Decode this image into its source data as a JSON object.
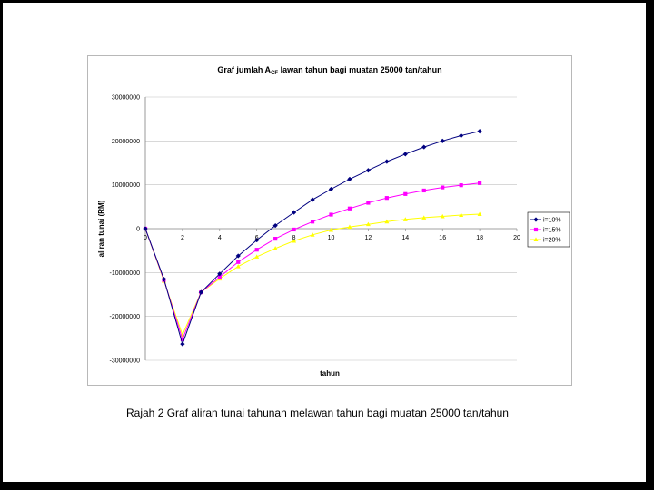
{
  "caption": "Rajah 2 Graf aliran tunai tahunan melawan tahun bagi muatan 25000 tan/tahun",
  "chart_data": {
    "type": "line",
    "title": "Graf jumlah A",
    "title_subscript": "CF",
    "title_rest": " lawan tahun bagi muatan 25000 tan/tahun",
    "xlabel": "tahun",
    "ylabel": "aliran tunai (RM)",
    "xlim": [
      0,
      20
    ],
    "ylim": [
      -30000000,
      30000000
    ],
    "x_ticks": [
      "0",
      "2",
      "4",
      "6",
      "8",
      "10",
      "12",
      "14",
      "16",
      "18",
      "20"
    ],
    "y_ticks": [
      "30000000",
      "20000000",
      "10000000",
      "0",
      "-10000000",
      "-20000000",
      "-30000000"
    ],
    "grid": "horizontal",
    "legend_position": "right",
    "x": [
      0,
      1,
      2,
      3,
      4,
      5,
      6,
      7,
      8,
      9,
      10,
      11,
      12,
      13,
      14,
      15,
      16,
      17,
      18
    ],
    "series": [
      {
        "name": "i=10%",
        "color": "#000080",
        "marker": "diamond",
        "values": [
          0,
          -11500000,
          -26300000,
          -14500000,
          -10300000,
          -6200000,
          -2600000,
          700000,
          3700000,
          6600000,
          9000000,
          11300000,
          13300000,
          15300000,
          17000000,
          18600000,
          20000000,
          21200000,
          22200000
        ]
      },
      {
        "name": "i=15%",
        "color": "#ff00ff",
        "marker": "square",
        "values": [
          0,
          -11700000,
          -25200000,
          -14500000,
          -11000000,
          -7600000,
          -4800000,
          -2300000,
          -200000,
          1600000,
          3200000,
          4600000,
          5900000,
          7000000,
          7900000,
          8700000,
          9400000,
          9900000,
          10400000
        ]
      },
      {
        "name": "i=20%",
        "color": "#ffff00",
        "marker": "triangle",
        "values": [
          0,
          -11900000,
          -24200000,
          -14500000,
          -11400000,
          -8600000,
          -6400000,
          -4500000,
          -2800000,
          -1400000,
          -300000,
          400000,
          1000000,
          1600000,
          2100000,
          2500000,
          2800000,
          3100000,
          3300000
        ]
      }
    ]
  }
}
